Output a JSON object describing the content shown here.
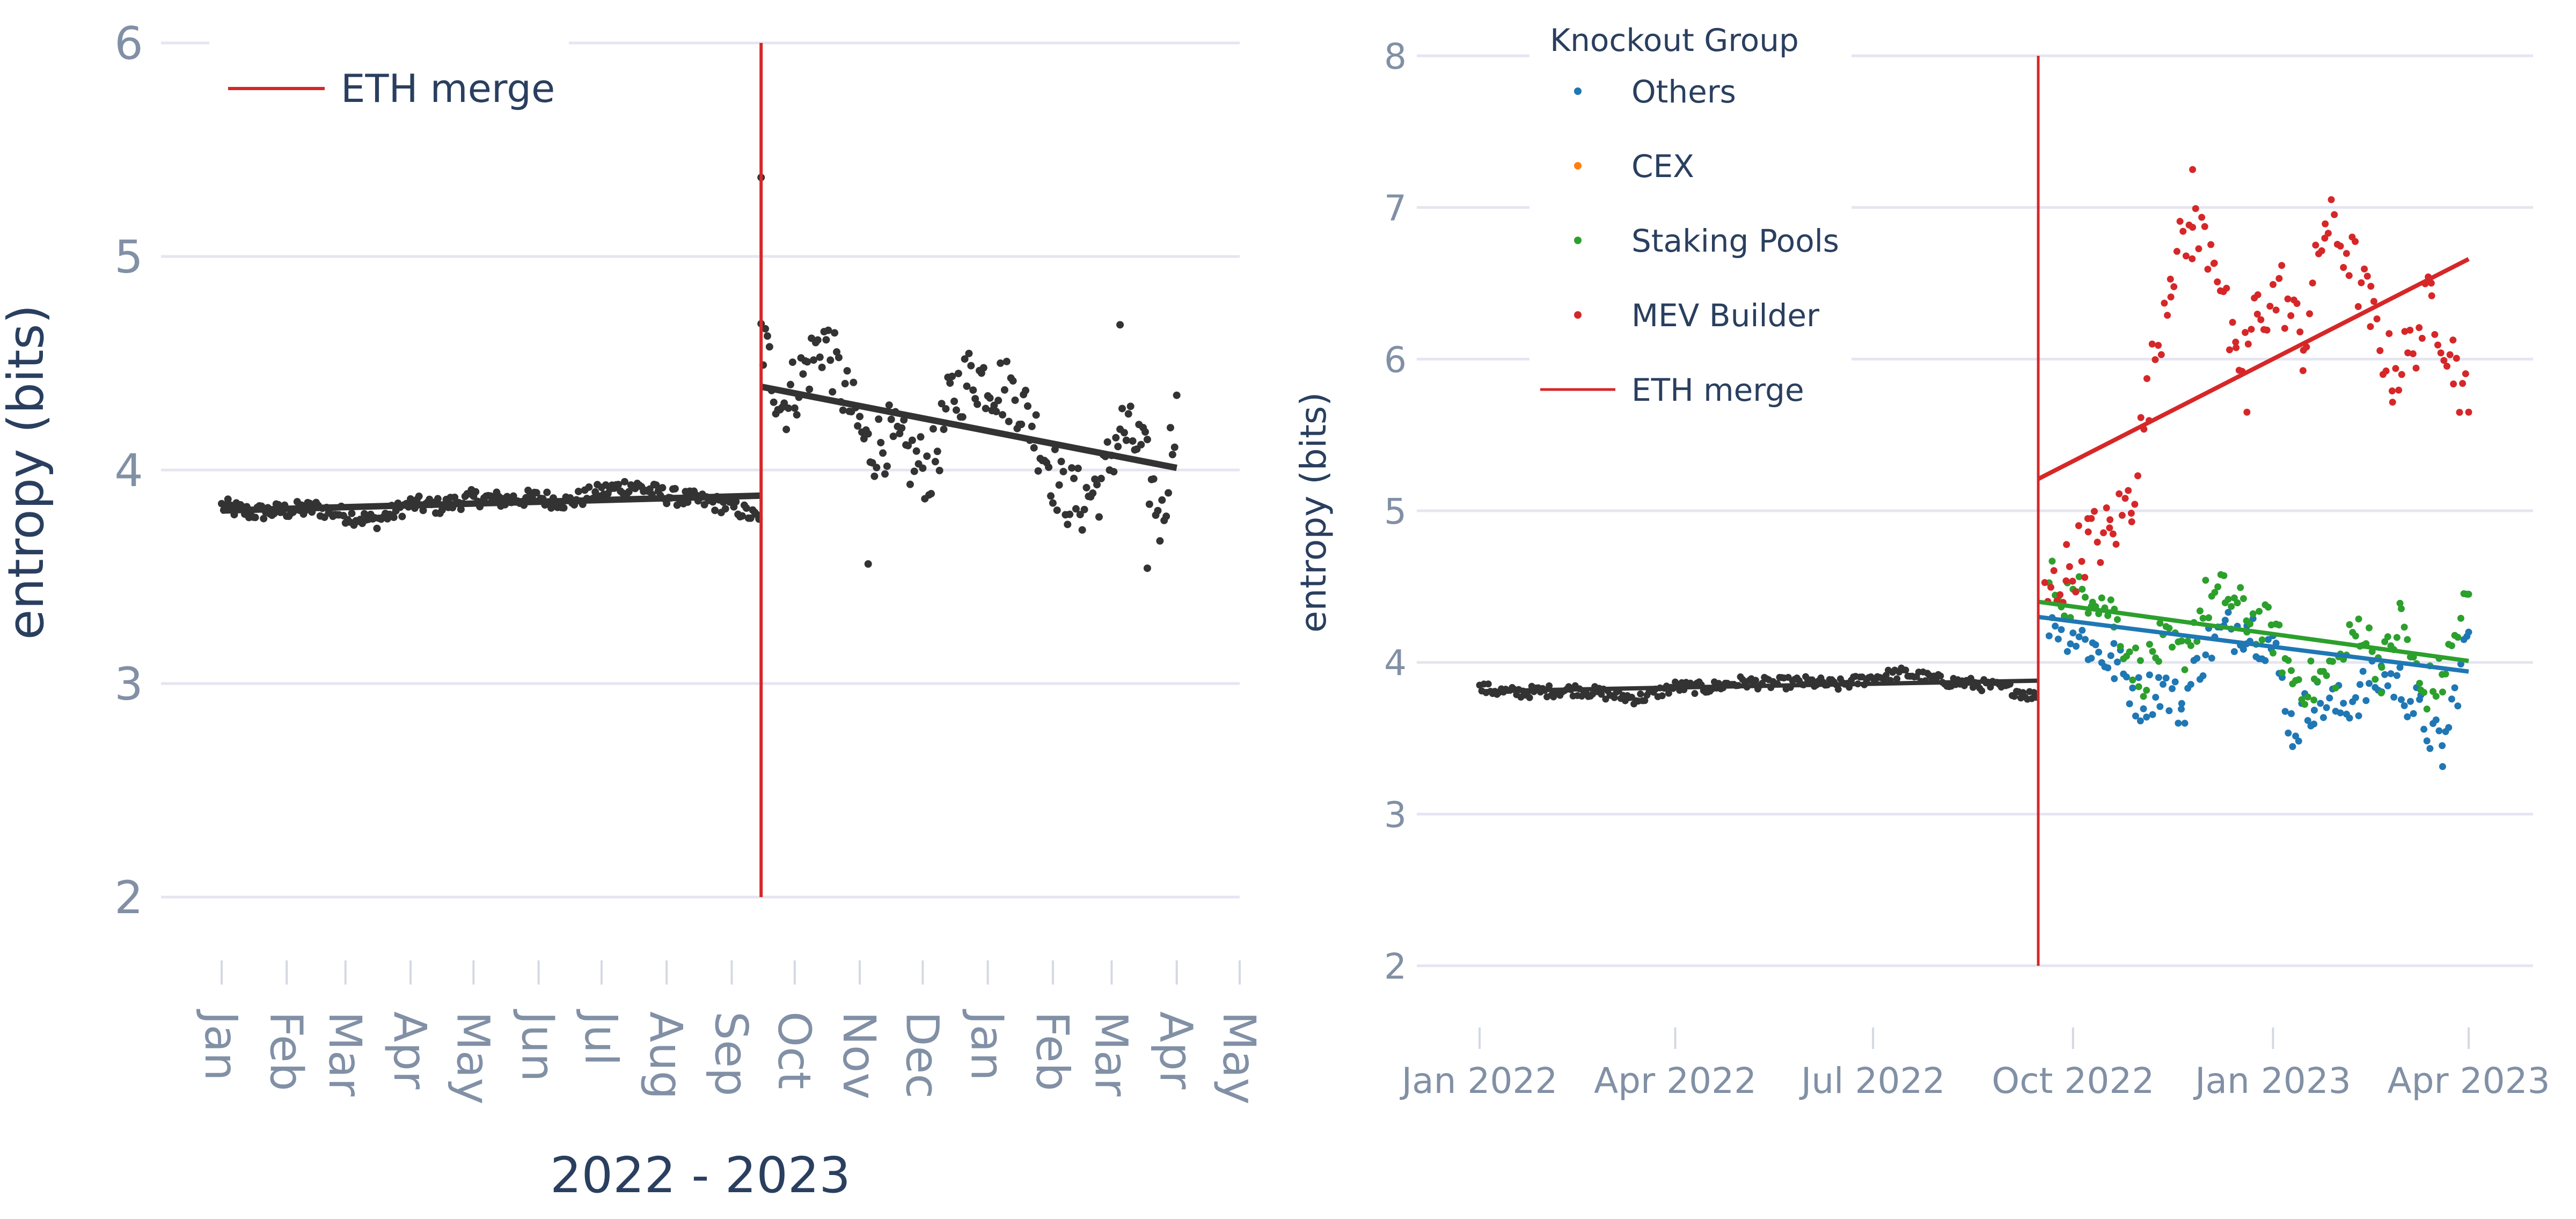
{
  "chart_data": [
    {
      "type": "scatter",
      "title": "",
      "xlabel": "2022 - 2023",
      "ylabel": "entropy (bits)",
      "ylim": [
        2,
        6
      ],
      "yticks": [
        2,
        3,
        4,
        5,
        6
      ],
      "xticks": [
        "Jan",
        "Feb",
        "Mar",
        "Apr",
        "May",
        "Jun",
        "Jul",
        "Aug",
        "Sep",
        "Oct",
        "Nov",
        "Dec",
        "Jan",
        "Feb",
        "Mar",
        "Apr",
        "May"
      ],
      "xtick_dates": [
        "2022-01-01",
        "2022-02-01",
        "2022-03-01",
        "2022-04-01",
        "2022-05-01",
        "2022-06-01",
        "2022-07-01",
        "2022-08-01",
        "2022-09-01",
        "2022-10-01",
        "2022-11-01",
        "2022-12-01",
        "2023-01-01",
        "2023-02-01",
        "2023-03-01",
        "2023-04-01",
        "2023-05-01"
      ],
      "grid": true,
      "legend_position": "top-left",
      "legend": [
        {
          "label": "ETH merge",
          "color": "#d62728",
          "kind": "line"
        }
      ],
      "vline": {
        "x": "2022-09-15",
        "color": "#d62728",
        "ymin": 2,
        "ymax": 6
      },
      "series": [
        {
          "color": "#333333",
          "pre_merge": {
            "x": [
              "2022-01-01",
              "2022-01-15",
              "2022-02-01",
              "2022-02-15",
              "2022-03-01",
              "2022-03-15",
              "2022-04-01",
              "2022-04-15",
              "2022-05-01",
              "2022-05-15",
              "2022-06-01",
              "2022-06-15",
              "2022-07-01",
              "2022-07-15",
              "2022-08-01",
              "2022-08-15",
              "2022-09-01",
              "2022-09-14"
            ],
            "y": [
              3.83,
              3.8,
              3.81,
              3.82,
              3.79,
              3.76,
              3.84,
              3.83,
              3.87,
              3.86,
              3.87,
              3.85,
              3.9,
              3.93,
              3.88,
              3.86,
              3.83,
              3.77
            ]
          },
          "post_merge": {
            "x": [
              "2022-09-15",
              "2022-09-25",
              "2022-10-05",
              "2022-10-15",
              "2022-10-25",
              "2022-11-05",
              "2022-11-15",
              "2022-11-25",
              "2022-12-05",
              "2022-12-15",
              "2022-12-25",
              "2023-01-05",
              "2023-01-15",
              "2023-01-25",
              "2023-02-05",
              "2023-02-15",
              "2023-02-25",
              "2023-03-05",
              "2023-03-15",
              "2023-03-25",
              "2023-04-01"
            ],
            "y": [
              4.62,
              4.3,
              4.45,
              4.62,
              4.35,
              4.1,
              4.15,
              4.05,
              4.0,
              4.35,
              4.45,
              4.4,
              4.35,
              4.15,
              3.9,
              3.85,
              3.95,
              4.2,
              4.1,
              3.75,
              4.35
            ]
          },
          "outliers": {
            "x": [
              "2022-09-15",
              "2022-11-05",
              "2023-03-05",
              "2023-03-18"
            ],
            "y": [
              5.37,
              3.56,
              4.68,
              3.54
            ]
          },
          "trend_pre": {
            "x": [
              "2022-01-01",
              "2022-09-15"
            ],
            "y": [
              3.81,
              3.88
            ]
          },
          "trend_post": {
            "x": [
              "2022-09-15",
              "2023-04-01"
            ],
            "y": [
              4.39,
              4.01
            ]
          }
        }
      ]
    },
    {
      "type": "scatter",
      "title": "",
      "xlabel": "",
      "ylabel": "entropy (bits)",
      "ylim": [
        2,
        8
      ],
      "yticks": [
        2,
        3,
        4,
        5,
        6,
        7,
        8
      ],
      "xticks": [
        "Jan 2022",
        "Apr 2022",
        "Jul 2022",
        "Oct 2022",
        "Jan 2023",
        "Apr 2023"
      ],
      "xtick_dates": [
        "2022-01-01",
        "2022-04-01",
        "2022-07-01",
        "2022-10-01",
        "2023-01-01",
        "2023-04-01"
      ],
      "grid": true,
      "legend_title": "Knockout Group",
      "legend_position": "top-left",
      "legend": [
        {
          "label": "Others",
          "color": "#1f77b4",
          "kind": "marker"
        },
        {
          "label": "CEX",
          "color": "#ff7f0e",
          "kind": "marker"
        },
        {
          "label": "Staking Pools",
          "color": "#2ca02c",
          "kind": "marker"
        },
        {
          "label": "MEV Builder",
          "color": "#d62728",
          "kind": "marker"
        },
        {
          "label": "ETH merge",
          "color": "#d62728",
          "kind": "line"
        }
      ],
      "vline": {
        "x": "2022-09-15",
        "color": "#d62728",
        "ymin": 2,
        "ymax": 8
      },
      "series": [
        {
          "name": "pre-merge",
          "color": "#333333",
          "points": {
            "x": [
              "2022-01-01",
              "2022-01-15",
              "2022-02-01",
              "2022-02-15",
              "2022-03-01",
              "2022-03-15",
              "2022-04-01",
              "2022-04-15",
              "2022-05-01",
              "2022-05-15",
              "2022-06-01",
              "2022-06-15",
              "2022-07-01",
              "2022-07-15",
              "2022-08-01",
              "2022-08-15",
              "2022-09-01",
              "2022-09-14"
            ],
            "y": [
              3.83,
              3.8,
              3.81,
              3.82,
              3.79,
              3.76,
              3.84,
              3.83,
              3.87,
              3.86,
              3.87,
              3.85,
              3.9,
              3.93,
              3.88,
              3.86,
              3.83,
              3.77
            ]
          },
          "trend": {
            "x": [
              "2022-01-01",
              "2022-09-15"
            ],
            "y": [
              3.81,
              3.88
            ]
          }
        },
        {
          "name": "Others",
          "color": "#1f77b4",
          "points": {
            "x": [
              "2022-09-20",
              "2022-10-01",
              "2022-10-10",
              "2022-10-20",
              "2022-11-01",
              "2022-11-10",
              "2022-11-20",
              "2022-12-01",
              "2022-12-10",
              "2022-12-20",
              "2023-01-01",
              "2023-01-10",
              "2023-01-20",
              "2023-02-01",
              "2023-02-10",
              "2023-02-20",
              "2023-03-01",
              "2023-03-10",
              "2023-03-20",
              "2023-04-01"
            ],
            "y": [
              4.3,
              4.2,
              4.1,
              4.0,
              3.75,
              3.85,
              3.7,
              4.1,
              4.2,
              4.25,
              4.1,
              3.55,
              3.75,
              3.7,
              3.8,
              3.9,
              3.85,
              3.65,
              3.4,
              4.2
            ]
          },
          "trend": {
            "x": [
              "2022-09-15",
              "2023-04-01"
            ],
            "y": [
              4.3,
              3.94
            ]
          }
        },
        {
          "name": "CEX",
          "color": "#ff7f0e",
          "points": {
            "x": [],
            "y": []
          }
        },
        {
          "name": "Staking Pools",
          "color": "#2ca02c",
          "points": {
            "x": [
              "2022-09-20",
              "2022-10-01",
              "2022-10-10",
              "2022-10-20",
              "2022-11-01",
              "2022-11-10",
              "2022-11-20",
              "2022-12-01",
              "2022-12-10",
              "2022-12-20",
              "2023-01-01",
              "2023-01-10",
              "2023-01-20",
              "2023-02-01",
              "2023-02-10",
              "2023-02-20",
              "2023-03-01",
              "2023-03-10",
              "2023-03-20",
              "2023-04-01"
            ],
            "y": [
              4.55,
              4.4,
              4.5,
              4.3,
              3.9,
              4.1,
              4.05,
              4.4,
              4.45,
              4.3,
              4.2,
              3.9,
              3.85,
              4.0,
              4.25,
              3.95,
              4.3,
              3.8,
              3.9,
              4.45
            ]
          },
          "trend": {
            "x": [
              "2022-09-15",
              "2023-04-01"
            ],
            "y": [
              4.4,
              4.01
            ]
          }
        },
        {
          "name": "MEV Builder",
          "color": "#d62728",
          "points": {
            "x": [
              "2022-09-18",
              "2022-09-28",
              "2022-10-08",
              "2022-10-18",
              "2022-10-28",
              "2022-11-05",
              "2022-11-15",
              "2022-11-25",
              "2022-12-05",
              "2022-12-15",
              "2022-12-25",
              "2023-01-05",
              "2023-01-15",
              "2023-01-25",
              "2023-02-05",
              "2023-02-15",
              "2023-02-25",
              "2023-03-05",
              "2023-03-15",
              "2023-03-25",
              "2023-04-01"
            ],
            "y": [
              4.4,
              4.6,
              4.8,
              4.85,
              5.1,
              5.8,
              6.6,
              6.85,
              6.75,
              5.9,
              6.3,
              6.45,
              6.1,
              6.9,
              6.7,
              6.3,
              5.9,
              6.05,
              6.4,
              6.0,
              5.65
            ]
          },
          "outliers": {
            "x": [
              "2022-11-25",
              "2022-12-20"
            ],
            "y": [
              7.25,
              5.65
            ]
          },
          "trend": {
            "x": [
              "2022-09-15",
              "2023-04-01"
            ],
            "y": [
              5.21,
              6.66
            ]
          }
        }
      ]
    }
  ]
}
